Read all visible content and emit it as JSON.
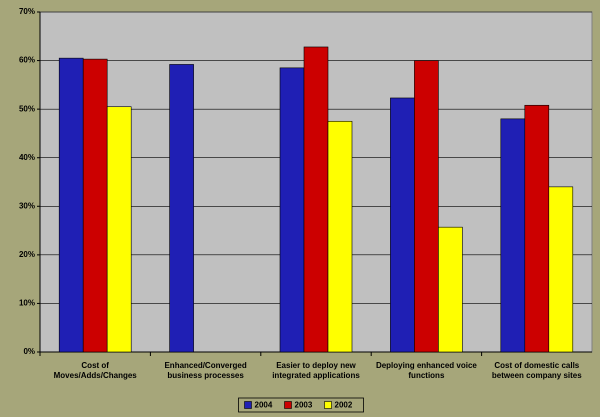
{
  "chart_data": {
    "type": "bar",
    "categories": [
      [
        "Cost of",
        "Moves/Adds/Changes"
      ],
      [
        "Enhanced/Converged",
        "business processes"
      ],
      [
        "Easier to deploy new",
        "integrated applications"
      ],
      [
        "Deploying enhanced voice",
        "functions"
      ],
      [
        "Cost of domestic calls",
        "between company sites"
      ]
    ],
    "series": [
      {
        "name": "2004",
        "color": "#1f1fb4",
        "values": [
          60.5,
          59.2,
          58.5,
          52.3,
          48
        ]
      },
      {
        "name": "2003",
        "color": "#cc0000",
        "values": [
          60.3,
          null,
          62.8,
          60,
          50.8
        ]
      },
      {
        "name": "2002",
        "color": "#ffff00",
        "values": [
          50.5,
          null,
          47.5,
          25.7,
          34
        ]
      }
    ],
    "ylim": [
      0,
      70
    ],
    "yticks": [
      {
        "value": 0,
        "label": "0%"
      },
      {
        "value": 10,
        "label": "10%"
      },
      {
        "value": 20,
        "label": "20%"
      },
      {
        "value": 30,
        "label": "30%"
      },
      {
        "value": 40,
        "label": "40%"
      },
      {
        "value": 50,
        "label": "50%"
      },
      {
        "value": 60,
        "label": "60%"
      },
      {
        "value": 70,
        "label": "70%"
      }
    ],
    "grid": true,
    "legend": "bottom"
  }
}
